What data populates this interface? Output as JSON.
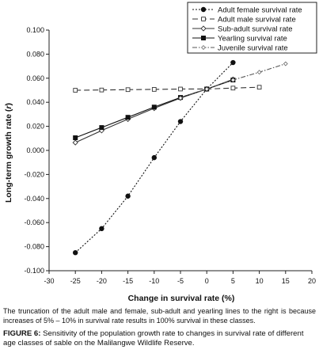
{
  "chart_data": {
    "type": "line",
    "xlabel": "Change in survival rate (%)",
    "ylabel": "Long-term growth rate (r)",
    "ylabel_main": "Long-term growth rate (",
    "ylabel_var": "r",
    "ylabel_end": ")",
    "xlim": [
      -30,
      20
    ],
    "ylim": [
      -0.1,
      0.1
    ],
    "x_ticks": [
      -30,
      -25,
      -20,
      -15,
      -10,
      -5,
      0,
      5,
      10,
      15,
      20
    ],
    "x_tick_labels": [
      "-30",
      "-25",
      "-20",
      "-15",
      "-10",
      "-5",
      "0",
      "5",
      "10",
      "15",
      "20"
    ],
    "y_ticks": [
      0.1,
      0.08,
      0.06,
      0.04,
      0.02,
      0.0,
      -0.02,
      -0.04,
      -0.06,
      -0.08,
      -0.1
    ],
    "y_tick_labels": [
      "0.100",
      "0.080",
      "0.060",
      "0.040",
      "0.020",
      "0.000",
      "-0.020",
      "-0.040",
      "-0.060",
      "-0.080",
      "-0.100"
    ],
    "grid": false,
    "legend_position": "top-right",
    "series": [
      {
        "name": "Adult female survival rate",
        "x": [
          -25,
          -20,
          -15,
          -10,
          -5,
          0,
          5
        ],
        "y": [
          -0.085,
          -0.065,
          -0.038,
          -0.006,
          0.024,
          0.051,
          0.073
        ],
        "marker": "filled-circle",
        "line": "dotted"
      },
      {
        "name": "Adult male survival rate",
        "x": [
          -25,
          -20,
          -15,
          -10,
          -5,
          0,
          5,
          10
        ],
        "y": [
          0.05,
          0.0502,
          0.0505,
          0.0507,
          0.051,
          0.051,
          0.0518,
          0.0525
        ],
        "marker": "open-square",
        "line": "long-dash"
      },
      {
        "name": "Sub-adult survival rate",
        "x": [
          -25,
          -20,
          -15,
          -10,
          -5,
          0,
          5
        ],
        "y": [
          0.0065,
          0.0165,
          0.026,
          0.035,
          0.0435,
          0.051,
          0.059
        ],
        "marker": "open-diamond",
        "line": "solid"
      },
      {
        "name": "Yearling survival rate",
        "x": [
          -25,
          -20,
          -15,
          -10,
          -5,
          0,
          5
        ],
        "y": [
          0.0105,
          0.019,
          0.0275,
          0.036,
          0.044,
          0.051,
          0.0585
        ],
        "marker": "filled-square",
        "line": "solid"
      },
      {
        "name": "Juvenile survival rate",
        "x": [
          -5,
          0,
          5,
          10,
          15
        ],
        "y": [
          0.0435,
          0.051,
          0.0585,
          0.065,
          0.072
        ],
        "marker": "open-diamond-small",
        "line": "dash-dot"
      }
    ]
  },
  "note": "The truncation of the adult male and female, sub-adult and yearling lines to the right is because increases of 5% – 10% in survival rate results in 100% survival in these classes.",
  "caption": {
    "label": "FIGURE 6:",
    "text": " Sensitivity of the population growth rate to changes in survival rate of different age classes of sable on the Malilangwe Wildlife Reserve."
  }
}
